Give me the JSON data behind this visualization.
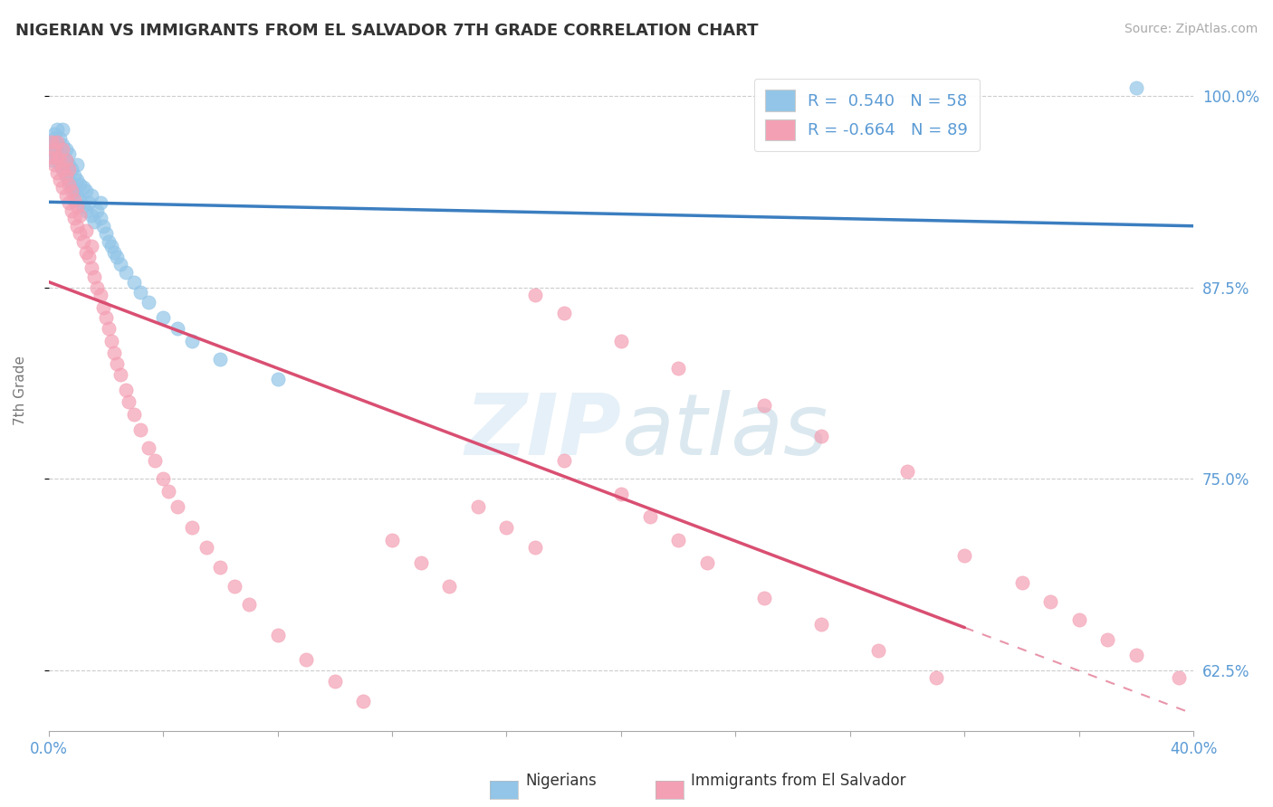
{
  "title": "NIGERIAN VS IMMIGRANTS FROM EL SALVADOR 7TH GRADE CORRELATION CHART",
  "source": "Source: ZipAtlas.com",
  "ylabel": "7th Grade",
  "legend_blue_label": "Nigerians",
  "legend_pink_label": "Immigrants from El Salvador",
  "r_blue": 0.54,
  "n_blue": 58,
  "r_pink": -0.664,
  "n_pink": 89,
  "blue_color": "#92C5E8",
  "blue_line_color": "#3B7EC0",
  "pink_color": "#F4A0B4",
  "pink_line_color": "#D94F72",
  "background_color": "#FFFFFF",
  "xmin": 0.0,
  "xmax": 0.4,
  "ymin": 0.585,
  "ymax": 1.03,
  "blue_x": [
    0.001,
    0.001,
    0.002,
    0.002,
    0.002,
    0.003,
    0.003,
    0.003,
    0.004,
    0.004,
    0.004,
    0.005,
    0.005,
    0.005,
    0.005,
    0.006,
    0.006,
    0.006,
    0.007,
    0.007,
    0.007,
    0.008,
    0.008,
    0.009,
    0.009,
    0.01,
    0.01,
    0.01,
    0.011,
    0.011,
    0.012,
    0.012,
    0.013,
    0.013,
    0.014,
    0.015,
    0.015,
    0.016,
    0.017,
    0.018,
    0.018,
    0.019,
    0.02,
    0.021,
    0.022,
    0.023,
    0.024,
    0.025,
    0.027,
    0.03,
    0.032,
    0.035,
    0.04,
    0.045,
    0.05,
    0.06,
    0.08,
    0.38
  ],
  "blue_y": [
    0.968,
    0.958,
    0.972,
    0.964,
    0.975,
    0.96,
    0.968,
    0.978,
    0.955,
    0.965,
    0.972,
    0.952,
    0.96,
    0.968,
    0.978,
    0.948,
    0.958,
    0.965,
    0.945,
    0.955,
    0.962,
    0.94,
    0.952,
    0.938,
    0.948,
    0.935,
    0.945,
    0.955,
    0.932,
    0.942,
    0.928,
    0.94,
    0.925,
    0.938,
    0.93,
    0.922,
    0.935,
    0.918,
    0.925,
    0.92,
    0.93,
    0.915,
    0.91,
    0.905,
    0.902,
    0.898,
    0.895,
    0.89,
    0.885,
    0.878,
    0.872,
    0.865,
    0.855,
    0.848,
    0.84,
    0.828,
    0.815,
    1.005
  ],
  "pink_x": [
    0.001,
    0.001,
    0.002,
    0.002,
    0.003,
    0.003,
    0.003,
    0.004,
    0.004,
    0.005,
    0.005,
    0.005,
    0.006,
    0.006,
    0.006,
    0.007,
    0.007,
    0.007,
    0.008,
    0.008,
    0.009,
    0.009,
    0.01,
    0.01,
    0.011,
    0.011,
    0.012,
    0.013,
    0.013,
    0.014,
    0.015,
    0.015,
    0.016,
    0.017,
    0.018,
    0.019,
    0.02,
    0.021,
    0.022,
    0.023,
    0.024,
    0.025,
    0.027,
    0.028,
    0.03,
    0.032,
    0.035,
    0.037,
    0.04,
    0.042,
    0.045,
    0.05,
    0.055,
    0.06,
    0.065,
    0.07,
    0.08,
    0.09,
    0.1,
    0.11,
    0.12,
    0.13,
    0.14,
    0.15,
    0.16,
    0.17,
    0.18,
    0.2,
    0.21,
    0.22,
    0.23,
    0.25,
    0.27,
    0.29,
    0.31,
    0.32,
    0.34,
    0.35,
    0.36,
    0.37,
    0.38,
    0.395,
    0.17,
    0.18,
    0.2,
    0.22,
    0.25,
    0.27,
    0.3
  ],
  "pink_y": [
    0.96,
    0.97,
    0.955,
    0.965,
    0.95,
    0.96,
    0.97,
    0.945,
    0.958,
    0.94,
    0.952,
    0.965,
    0.935,
    0.948,
    0.958,
    0.93,
    0.942,
    0.952,
    0.925,
    0.938,
    0.92,
    0.932,
    0.915,
    0.928,
    0.91,
    0.922,
    0.905,
    0.898,
    0.912,
    0.895,
    0.888,
    0.902,
    0.882,
    0.875,
    0.87,
    0.862,
    0.855,
    0.848,
    0.84,
    0.832,
    0.825,
    0.818,
    0.808,
    0.8,
    0.792,
    0.782,
    0.77,
    0.762,
    0.75,
    0.742,
    0.732,
    0.718,
    0.705,
    0.692,
    0.68,
    0.668,
    0.648,
    0.632,
    0.618,
    0.605,
    0.71,
    0.695,
    0.68,
    0.732,
    0.718,
    0.705,
    0.762,
    0.74,
    0.725,
    0.71,
    0.695,
    0.672,
    0.655,
    0.638,
    0.62,
    0.7,
    0.682,
    0.67,
    0.658,
    0.645,
    0.635,
    0.62,
    0.87,
    0.858,
    0.84,
    0.822,
    0.798,
    0.778,
    0.755
  ]
}
